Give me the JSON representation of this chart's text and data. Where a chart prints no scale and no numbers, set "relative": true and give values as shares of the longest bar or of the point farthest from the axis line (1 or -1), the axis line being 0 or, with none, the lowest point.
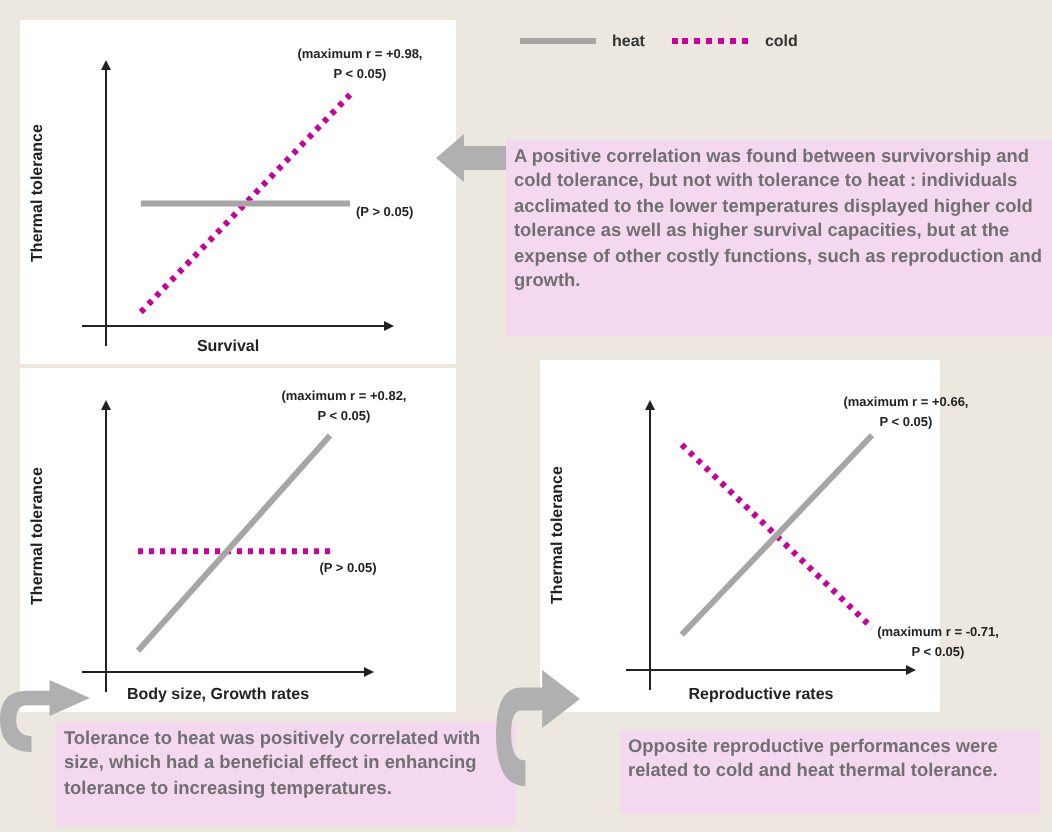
{
  "chart_data": [
    {
      "type": "line",
      "ylabel": "Thermal tolerance",
      "xlabel": "Survival",
      "relative": true,
      "legend": "top right",
      "marker": "none",
      "categories": [
        null,
        null,
        null,
        null,
        null,
        null,
        null,
        null
      ],
      "series": [
        {
          "name": "heat",
          "color": "#a6a6a6",
          "line_style": "solid",
          "values": [
            null,
            0.53,
            null,
            null,
            null,
            null,
            null,
            0.53
          ]
        },
        {
          "name": "cold",
          "color": "#cc0099",
          "line_style": "dotted",
          "values": [
            null,
            0.06,
            null,
            null,
            null,
            null,
            null,
            1
          ]
        }
      ],
      "annotations": [
        "(maximum r = +0.98,\nP < 0.05)",
        "(P > 0.05)",
        "A positive correlation  was found between survivorship and cold tolerance, but not with tolerance to heat : individuals acclimated to the lower temperatures displayed higher cold tolerance as well as higher survival capacities, but at the expense of other costly functions, such as reproduction and growth."
      ]
    },
    {
      "type": "line",
      "ylabel": "Thermal tolerance",
      "xlabel": "Body size, Growth rates",
      "relative": true,
      "marker": "none",
      "categories": [
        null,
        null,
        null,
        null,
        null,
        null,
        null,
        null
      ],
      "series": [
        {
          "color": "#a6a6a6",
          "line_style": "solid",
          "values": [
            null,
            0.09,
            null,
            null,
            null,
            null,
            null,
            1
          ]
        },
        {
          "color": "#cc0099",
          "line_style": "dotted",
          "values": [
            null,
            0.51,
            null,
            null,
            null,
            null,
            null,
            0.51
          ]
        }
      ],
      "annotations": [
        "(maximum r = +0.82,\nP < 0.05)",
        "(P > 0.05)",
        "Tolerance to heat was positively correlated with size, which had a beneficial effect in enhancing tolerance to increasing temperatures."
      ]
    },
    {
      "type": "line",
      "ylabel": "Thermal tolerance",
      "xlabel": "Reproductive rates",
      "relative": true,
      "marker": "none",
      "categories": [
        null,
        null,
        null,
        null,
        null,
        null,
        null,
        null
      ],
      "series": [
        {
          "color": "#a6a6a6",
          "line_style": "solid",
          "values": [
            null,
            0.15,
            null,
            null,
            null,
            null,
            null,
            1
          ]
        },
        {
          "color": "#cc0099",
          "line_style": "dotted",
          "values": [
            null,
            0.96,
            null,
            null,
            null,
            null,
            null,
            0.18
          ]
        }
      ],
      "annotations": [
        "(maximum r = +0.66,\nP < 0.05)",
        "(maximum r = -0.71,\nP < 0.05)",
        "Opposite reproductive performances were related to cold and heat thermal tolerance."
      ]
    }
  ]
}
